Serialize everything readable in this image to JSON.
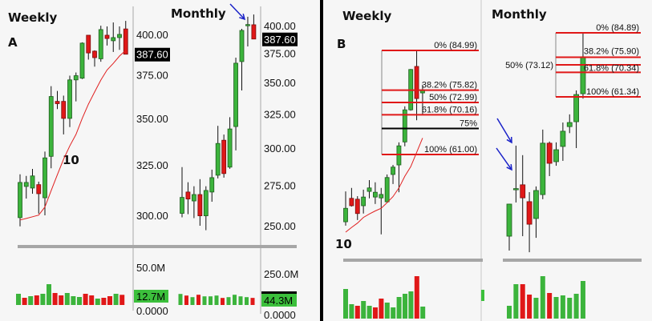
{
  "chart_data": [
    {
      "type": "candlestick",
      "panel": "A",
      "title": "Weekly",
      "scale": "log",
      "yticks": [
        "400.00",
        "375.00",
        "350.00",
        "325.00",
        "300.00"
      ],
      "ytick_values": [
        400,
        375,
        350,
        325,
        300
      ],
      "last_price_label": "387.60",
      "ma_label": "10",
      "candles": [
        [
          298.9,
          320.2,
          294.8,
          316.1
        ],
        [
          314.1,
          319.4,
          308.1,
          316.1
        ],
        [
          313.3,
          323.0,
          310.5,
          319.4
        ],
        [
          315.0,
          316.5,
          300.8,
          310.5
        ],
        [
          308.5,
          332.0,
          300.0,
          328.7
        ],
        [
          329.5,
          368.4,
          323.3,
          362.4
        ],
        [
          359.6,
          365.6,
          355.2,
          358.3
        ],
        [
          359.6,
          362.9,
          341.2,
          350.0
        ],
        [
          350.0,
          374.6,
          345.2,
          372.1
        ],
        [
          372.1,
          376.5,
          359.6,
          374.6
        ],
        [
          373.1,
          395.0,
          372.6,
          394.5
        ],
        [
          399.5,
          399.5,
          384.3,
          388.4
        ],
        [
          389.5,
          390.0,
          380.0,
          385.5
        ],
        [
          384.8,
          405.6,
          383.0,
          403.1
        ],
        [
          399.5,
          405.1,
          393.0,
          397.4
        ],
        [
          396.0,
          407.7,
          389.0,
          398.0
        ],
        [
          398.0,
          405.1,
          390.3,
          400.0
        ],
        [
          403.5,
          408.7,
          387.6,
          387.6
        ]
      ],
      "ma10": [
        297.8,
        298.5,
        299.3,
        300.1,
        304.0,
        312.0,
        320.0,
        328.0,
        335.0,
        341.2,
        350.0,
        358.0,
        365.0,
        372.0,
        378.0,
        382.0,
        386.5,
        390.0
      ],
      "volume": {
        "axis_label": "50.0M",
        "last_label": "12.7M",
        "zero_label": "0.0000",
        "values_m": [
          14,
          9,
          11,
          12,
          14,
          26,
          15,
          12,
          15,
          11,
          10,
          14,
          12,
          8,
          9,
          11,
          14,
          12.7
        ],
        "colors": [
          "g",
          "r",
          "g",
          "r",
          "g",
          "g",
          "r",
          "r",
          "g",
          "g",
          "g",
          "r",
          "r",
          "g",
          "r",
          "r",
          "g",
          "r"
        ]
      }
    },
    {
      "type": "candlestick",
      "panel": "A",
      "title": "Monthly",
      "scale": "log",
      "yticks": [
        "400.00",
        "375.00",
        "350.00",
        "325.00",
        "300.00",
        "275.00",
        "250.00"
      ],
      "ytick_values": [
        400,
        375,
        350,
        325,
        300,
        275,
        250
      ],
      "last_price_label": "387.60",
      "annotation": "blue arrow pointing at latest candle",
      "candles": [
        [
          257.4,
          286.9,
          255.0,
          267.2
        ],
        [
          270.6,
          276.9,
          256.9,
          266.2
        ],
        [
          265.0,
          274.3,
          254.5,
          269.0
        ],
        [
          269.0,
          278.9,
          250.0,
          255.9
        ],
        [
          255.9,
          274.3,
          247.4,
          271.6
        ],
        [
          270.6,
          285.2,
          264.5,
          279.9
        ],
        [
          281.5,
          316.1,
          279.4,
          303.3
        ],
        [
          305.6,
          309.7,
          279.9,
          282.6
        ],
        [
          286.9,
          322.6,
          285.8,
          313.8
        ],
        [
          315.6,
          371.0,
          298.4,
          366.2
        ],
        [
          367.6,
          397.0,
          343.5,
          395.5
        ],
        [
          400.0,
          408.4,
          380.9,
          401.0
        ],
        [
          400.8,
          410.6,
          387.6,
          387.6
        ]
      ],
      "volume": {
        "axis_label": "250.0M",
        "last_label": "44.3M",
        "zero_label": "0.0000",
        "values_m": [
          69,
          59,
          49,
          64,
          54,
          54,
          59,
          44,
          49,
          64,
          54,
          49,
          44.3
        ],
        "colors": [
          "g",
          "r",
          "g",
          "r",
          "g",
          "g",
          "g",
          "r",
          "g",
          "g",
          "g",
          "g",
          "r"
        ]
      }
    },
    {
      "type": "candlestick",
      "panel": "B",
      "title": "Weekly",
      "scale": "linear",
      "ma_label": "10",
      "fib": {
        "high": 84.99,
        "low": 61.0,
        "levels": [
          {
            "pct": 0,
            "label": "0% (84.99)",
            "color": "#e01818"
          },
          {
            "pct": 38.2,
            "label": "38.2% (75.82)",
            "color": "#e01818"
          },
          {
            "pct": 50,
            "label": "50% (72.99)",
            "color": "#e01818"
          },
          {
            "pct": 61.8,
            "label": "61.8% (70.16)",
            "color": "#e01818"
          },
          {
            "pct": 75,
            "label": "75%",
            "color": "#000000"
          },
          {
            "pct": 100,
            "label": "100% (61.00)",
            "color": "#e01818"
          }
        ]
      },
      "candles": [
        [
          45.5,
          52.5,
          44.6,
          48.6
        ],
        [
          50.9,
          53.3,
          49.0,
          49.2
        ],
        [
          50.7,
          51.4,
          45.9,
          47.4
        ],
        [
          49.2,
          52.9,
          47.4,
          51.2
        ],
        [
          52.5,
          55.1,
          50.9,
          53.3
        ],
        [
          51.2,
          54.6,
          49.6,
          52.3
        ],
        [
          51.0,
          53.3,
          42.6,
          51.8
        ],
        [
          50.1,
          56.4,
          49.9,
          55.7
        ],
        [
          56.4,
          58.6,
          54.2,
          58.1
        ],
        [
          58.6,
          63.8,
          52.3,
          63.0
        ],
        [
          63.9,
          72.1,
          62.9,
          71.3
        ],
        [
          71.3,
          80.7,
          71.1,
          80.6
        ],
        [
          81.3,
          84.99,
          68.9,
          73.9
        ],
        [
          75.2,
          77.1,
          70.2,
          75.9
        ]
      ],
      "ma10": [
        43.1,
        44.2,
        45.2,
        46.5,
        47.3,
        48.0,
        48.6,
        49.9,
        51.3,
        53.3,
        56.0,
        58.2,
        61.5,
        64.8
      ],
      "volume": {
        "values": [
          37,
          18,
          16,
          22,
          16,
          14,
          25,
          20,
          14,
          27,
          31,
          34,
          53,
          15
        ],
        "colors": [
          "g",
          "g",
          "r",
          "g",
          "g",
          "r",
          "r",
          "g",
          "g",
          "g",
          "g",
          "g",
          "r",
          "g"
        ]
      }
    },
    {
      "type": "candlestick",
      "panel": "B",
      "title": "Monthly",
      "scale": "linear",
      "annotation": "two blue arrows pointing at early candles",
      "fib": {
        "high": 84.89,
        "low": 61.34,
        "levels": [
          {
            "pct": 0,
            "label": "0% (84.89)",
            "color": "#e01818"
          },
          {
            "pct": 38.2,
            "label": "38.2% (75.90)",
            "color": "#e01818"
          },
          {
            "pct": 50,
            "label": "50% (73.12)",
            "color": "#e01818"
          },
          {
            "pct": 61.8,
            "label": "61.8% (70.34)",
            "color": "#e01818"
          },
          {
            "pct": 100,
            "label": "100% (61.34)",
            "color": "#e01818"
          }
        ]
      },
      "candles": [
        [
          10.1,
          22.0,
          4.8,
          21.9
        ],
        [
          27.5,
          43.4,
          22.5,
          27.6
        ],
        [
          29.0,
          39.9,
          10.1,
          24.2
        ],
        [
          22.8,
          26.3,
          4.2,
          14.5
        ],
        [
          16.6,
          28.4,
          9.5,
          26.9
        ],
        [
          25.4,
          49.3,
          23.7,
          44.3
        ],
        [
          44.3,
          44.9,
          32.2,
          36.9
        ],
        [
          37.5,
          44.6,
          36.0,
          41.9
        ],
        [
          43.1,
          51.9,
          37.8,
          48.7
        ],
        [
          50.4,
          54.9,
          48.0,
          51.9
        ],
        [
          52.2,
          63.7,
          42.5,
          62.2
        ],
        [
          62.5,
          84.6,
          60.7,
          76.1
        ]
      ],
      "volume": {
        "values": [
          16,
          43,
          43,
          30,
          26,
          53,
          32,
          27,
          29,
          26,
          31,
          47
        ],
        "colors": [
          "g",
          "g",
          "r",
          "r",
          "g",
          "g",
          "r",
          "g",
          "g",
          "g",
          "g",
          "g"
        ]
      }
    }
  ],
  "labels": {
    "panel_a": "A",
    "panel_b": "B"
  },
  "colors": {
    "up": "#3cb43c",
    "down": "#e01818",
    "ma": "#e02020",
    "arrow": "#1a22c8",
    "divider": "#a8a8a8"
  }
}
